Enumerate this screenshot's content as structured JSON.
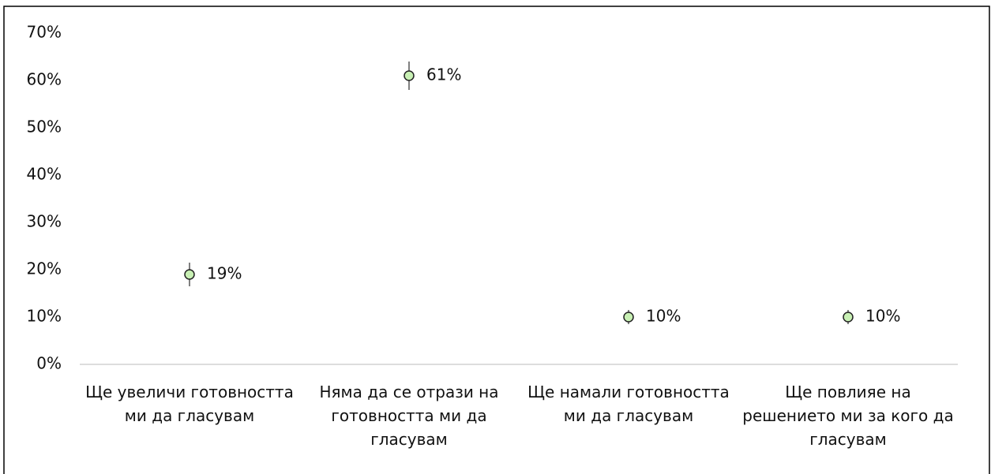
{
  "chart_data": {
    "type": "dot",
    "categories": [
      "Ще увеличи готовността ми да гласувам",
      "Няма да се отрази на готовността ми да гласувам",
      "Ще намали готовността ми да гласувам",
      "Ще повлияе на решението ми за кого да гласувам"
    ],
    "values": [
      19,
      61,
      10,
      10
    ],
    "value_labels": [
      "19%",
      "61%",
      "10%",
      "10%"
    ],
    "errors": [
      2.5,
      3,
      1.5,
      1.5
    ],
    "color": "#c8f0b4",
    "label_color": "#e00000",
    "ylim": [
      0,
      70
    ],
    "yticks": [
      {
        "value": 0,
        "label": "0%"
      },
      {
        "value": 10,
        "label": "10%"
      },
      {
        "value": 20,
        "label": "20%"
      },
      {
        "value": 30,
        "label": "30%"
      },
      {
        "value": 40,
        "label": "40%"
      },
      {
        "value": 50,
        "label": "50%"
      },
      {
        "value": 60,
        "label": "60%"
      },
      {
        "value": 70,
        "label": "70%"
      }
    ],
    "grid": false
  }
}
